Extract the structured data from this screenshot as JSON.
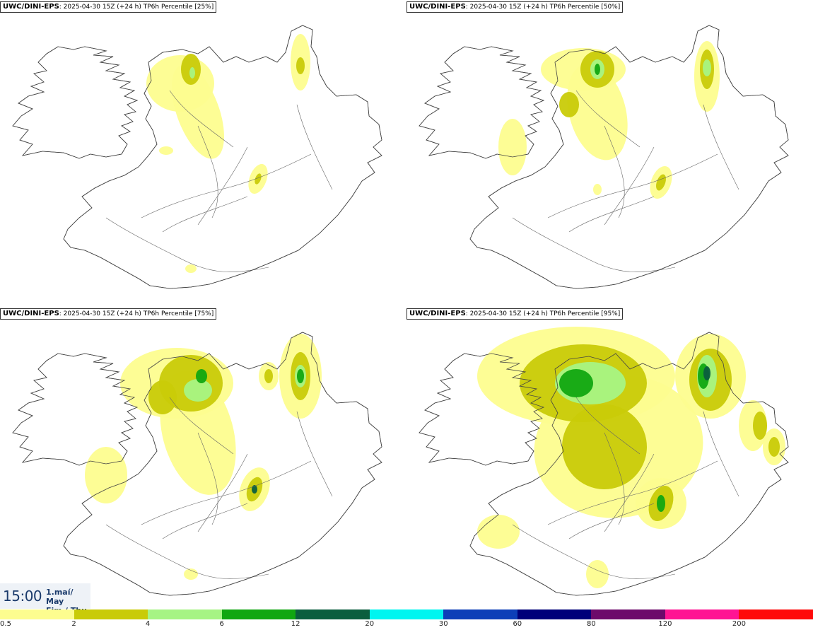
{
  "panels": [
    {
      "model": "UWC/DINI-EPS",
      "info": ": 2025-04-30 15Z (+24 h) TP6h Percentile [25%]"
    },
    {
      "model": "UWC/DINI-EPS",
      "info": ": 2025-04-30 15Z (+24 h) TP6h Percentile [50%]"
    },
    {
      "model": "UWC/DINI-EPS",
      "info": ": 2025-04-30 15Z (+24 h) TP6h Percentile [75%]"
    },
    {
      "model": "UWC/DINI-EPS",
      "info": ": 2025-04-30 15Z (+24 h) TP6h Percentile [95%]"
    }
  ],
  "valid_time": {
    "time": "15:00",
    "date_line1": "1.maí/ May",
    "date_line2": "Fim./ Thu"
  },
  "legend": {
    "colors": [
      "#fdfd8f",
      "#c9cb08",
      "#a6f484",
      "#11a711",
      "#0b5e3e",
      "#00f5f0",
      "#0d3fb8",
      "#00007a",
      "#6d0a6b",
      "#ff1493",
      "#ff0a0a"
    ],
    "ticks": [
      "0.5",
      "2",
      "4",
      "6",
      "12",
      "20",
      "30",
      "60",
      "80",
      "120",
      "200"
    ]
  }
}
